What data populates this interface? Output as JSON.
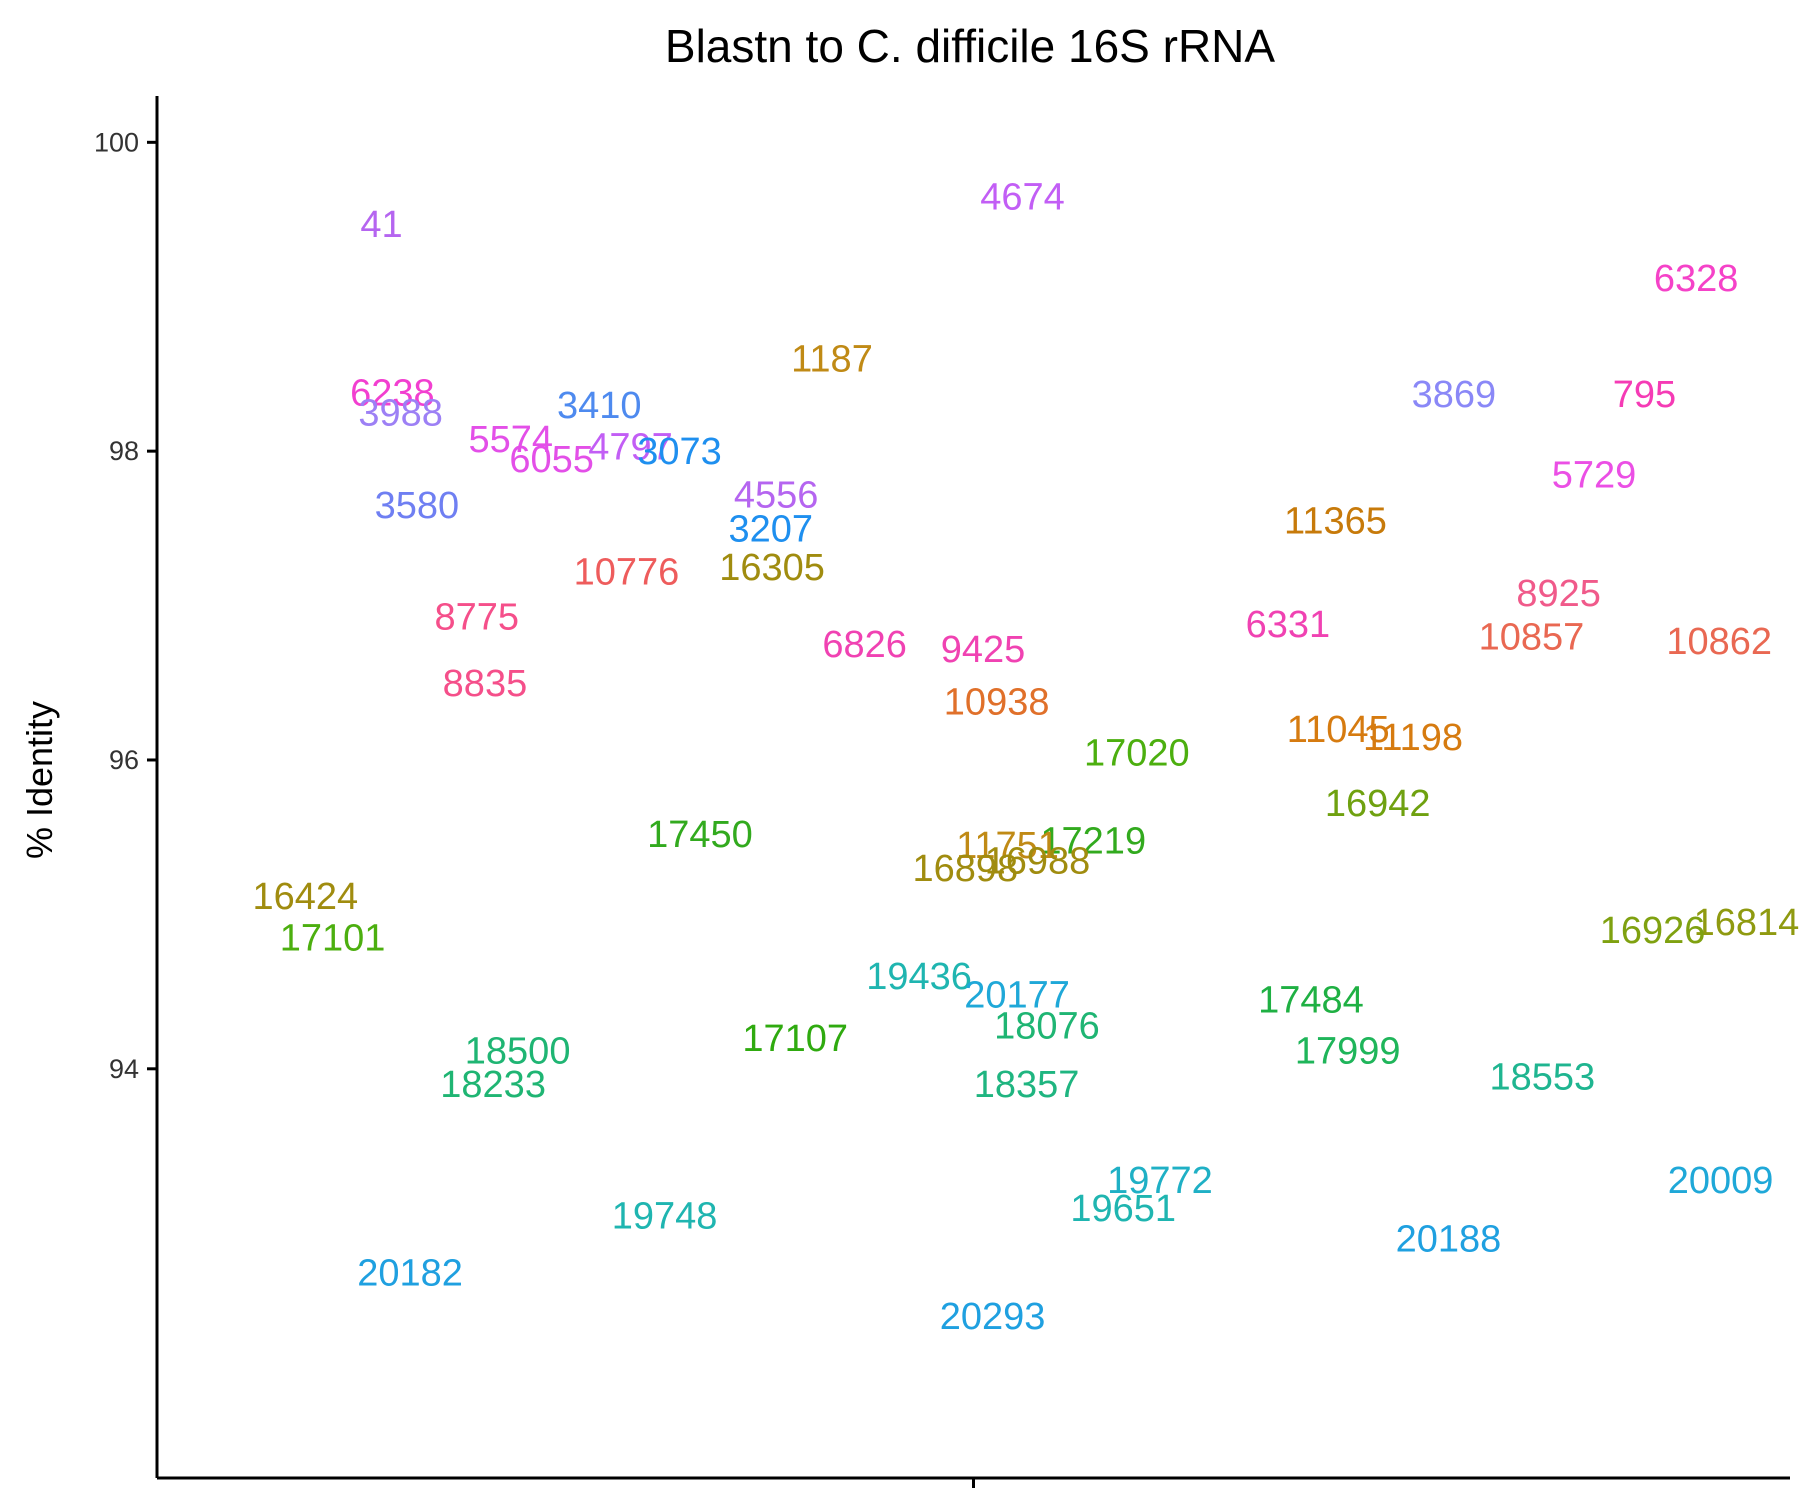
{
  "chart_data": {
    "type": "scatter",
    "title": "Blastn to C. difficile 16S rRNA",
    "xlabel": "",
    "ylabel": "% Identity",
    "ylim": [
      91.35,
      100.3
    ],
    "xlim": [
      0.4,
      1.6
    ],
    "yticks": [
      94,
      96,
      98,
      100
    ],
    "xticks": [
      1
    ],
    "x_tick_labels": [
      ""
    ],
    "grid": false,
    "legend": "none",
    "points": [
      {
        "label": "41",
        "x": 0.565,
        "y": 99.47,
        "color": "#B565F0"
      },
      {
        "label": "4674",
        "x": 1.036,
        "y": 99.65,
        "color": "#C25EF5"
      },
      {
        "label": "6328",
        "x": 1.531,
        "y": 99.12,
        "color": "#F542C8"
      },
      {
        "label": "1187",
        "x": 0.896,
        "y": 98.6,
        "color": "#C08A15"
      },
      {
        "label": "6238",
        "x": 0.573,
        "y": 98.38,
        "color": "#F23FD0"
      },
      {
        "label": "3988",
        "x": 0.579,
        "y": 98.25,
        "color": "#9D80F5"
      },
      {
        "label": "3410",
        "x": 0.725,
        "y": 98.3,
        "color": "#4E8AEF"
      },
      {
        "label": "3869",
        "x": 1.353,
        "y": 98.37,
        "color": "#8A88F7"
      },
      {
        "label": "795",
        "x": 1.493,
        "y": 98.37,
        "color": "#F53BB5"
      },
      {
        "label": "5574",
        "x": 0.66,
        "y": 98.08,
        "color": "#E34FE8"
      },
      {
        "label": "4797",
        "x": 0.748,
        "y": 98.03,
        "color": "#C25EF5"
      },
      {
        "label": "3073",
        "x": 0.784,
        "y": 98.0,
        "color": "#1E8FEF"
      },
      {
        "label": "6055",
        "x": 0.69,
        "y": 97.95,
        "color": "#E34FE8"
      },
      {
        "label": "5729",
        "x": 1.456,
        "y": 97.85,
        "color": "#EB4FE5"
      },
      {
        "label": "4556",
        "x": 0.855,
        "y": 97.72,
        "color": "#B565F0"
      },
      {
        "label": "3580",
        "x": 0.591,
        "y": 97.65,
        "color": "#6F7FF2"
      },
      {
        "label": "11365",
        "x": 1.266,
        "y": 97.55,
        "color": "#C77A0A"
      },
      {
        "label": "3207",
        "x": 0.851,
        "y": 97.5,
        "color": "#1E8FEF"
      },
      {
        "label": "16305",
        "x": 0.852,
        "y": 97.25,
        "color": "#A08C0F"
      },
      {
        "label": "10776",
        "x": 0.745,
        "y": 97.22,
        "color": "#EE5C5C"
      },
      {
        "label": "8925",
        "x": 1.43,
        "y": 97.08,
        "color": "#F05A8A"
      },
      {
        "label": "8775",
        "x": 0.635,
        "y": 96.93,
        "color": "#F54F8A"
      },
      {
        "label": "6331",
        "x": 1.231,
        "y": 96.88,
        "color": "#F042B2"
      },
      {
        "label": "10857",
        "x": 1.41,
        "y": 96.8,
        "color": "#E96852"
      },
      {
        "label": "10862",
        "x": 1.548,
        "y": 96.77,
        "color": "#E96852"
      },
      {
        "label": "6826",
        "x": 0.92,
        "y": 96.75,
        "color": "#F042B2"
      },
      {
        "label": "9425",
        "x": 1.007,
        "y": 96.72,
        "color": "#F042B2"
      },
      {
        "label": "8835",
        "x": 0.641,
        "y": 96.5,
        "color": "#F54F8A"
      },
      {
        "label": "10938",
        "x": 1.017,
        "y": 96.38,
        "color": "#E0702A"
      },
      {
        "label": "11045",
        "x": 1.268,
        "y": 96.2,
        "color": "#D67B10"
      },
      {
        "label": "11198",
        "x": 1.323,
        "y": 96.15,
        "color": "#D67B10"
      },
      {
        "label": "17020",
        "x": 1.12,
        "y": 96.05,
        "color": "#4CAF0F"
      },
      {
        "label": "16942",
        "x": 1.297,
        "y": 95.72,
        "color": "#6FA110"
      },
      {
        "label": "17450",
        "x": 0.799,
        "y": 95.52,
        "color": "#32AA1E"
      },
      {
        "label": "17219",
        "x": 1.088,
        "y": 95.48,
        "color": "#32AA1E"
      },
      {
        "label": "11751",
        "x": 1.025,
        "y": 95.45,
        "color": "#C08A15"
      },
      {
        "label": "16988",
        "x": 1.047,
        "y": 95.35,
        "color": "#A08C0F"
      },
      {
        "label": "16898",
        "x": 0.994,
        "y": 95.3,
        "color": "#A08C0F"
      },
      {
        "label": "16424",
        "x": 0.509,
        "y": 95.12,
        "color": "#A08C0F"
      },
      {
        "label": "16814",
        "x": 1.568,
        "y": 94.95,
        "color": "#8F9A10"
      },
      {
        "label": "16926",
        "x": 1.499,
        "y": 94.9,
        "color": "#7FA110"
      },
      {
        "label": "17101",
        "x": 0.529,
        "y": 94.85,
        "color": "#4CAF0F"
      },
      {
        "label": "19436",
        "x": 0.96,
        "y": 94.6,
        "color": "#1FB5B0"
      },
      {
        "label": "20177",
        "x": 1.032,
        "y": 94.48,
        "color": "#1FA8D8"
      },
      {
        "label": "17484",
        "x": 1.248,
        "y": 94.45,
        "color": "#1FB043"
      },
      {
        "label": "18076",
        "x": 1.054,
        "y": 94.28,
        "color": "#1FB573"
      },
      {
        "label": "17107",
        "x": 0.869,
        "y": 94.2,
        "color": "#2FAA0F"
      },
      {
        "label": "18500",
        "x": 0.665,
        "y": 94.12,
        "color": "#1FB573"
      },
      {
        "label": "17999",
        "x": 1.275,
        "y": 94.12,
        "color": "#1FB55A"
      },
      {
        "label": "18553",
        "x": 1.418,
        "y": 93.95,
        "color": "#1FB590"
      },
      {
        "label": "18233",
        "x": 0.647,
        "y": 93.9,
        "color": "#1FB573"
      },
      {
        "label": "18357",
        "x": 1.039,
        "y": 93.9,
        "color": "#1FB580"
      },
      {
        "label": "19772",
        "x": 1.137,
        "y": 93.28,
        "color": "#1FB0C5"
      },
      {
        "label": "20009",
        "x": 1.549,
        "y": 93.28,
        "color": "#1FA8D8"
      },
      {
        "label": "19651",
        "x": 1.11,
        "y": 93.1,
        "color": "#1FB5B0"
      },
      {
        "label": "19748",
        "x": 0.773,
        "y": 93.05,
        "color": "#1FB5B0"
      },
      {
        "label": "20188",
        "x": 1.349,
        "y": 92.9,
        "color": "#1FA0E0"
      },
      {
        "label": "20182",
        "x": 0.586,
        "y": 92.68,
        "color": "#1FA0E0"
      },
      {
        "label": "20293",
        "x": 1.014,
        "y": 92.4,
        "color": "#1FA0E0"
      }
    ]
  }
}
